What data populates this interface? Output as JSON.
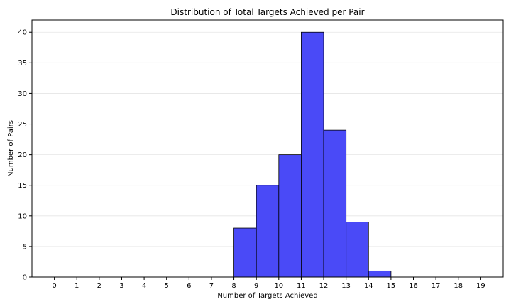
{
  "chart_data": {
    "type": "bar",
    "title": "Distribution of Total Targets Achieved per Pair",
    "xlabel": "Number of Targets Achieved",
    "ylabel": "Number of Pairs",
    "x_ticks": [
      "0",
      "1",
      "2",
      "3",
      "4",
      "5",
      "6",
      "7",
      "8",
      "9",
      "10",
      "11",
      "12",
      "13",
      "14",
      "15",
      "16",
      "17",
      "18",
      "19"
    ],
    "y_ticks": [
      "0",
      "5",
      "10",
      "15",
      "20",
      "25",
      "30",
      "35",
      "40"
    ],
    "xlim": [
      -1,
      20
    ],
    "ylim": [
      0,
      42
    ],
    "grid": "horizontal",
    "bar_color": "#4a4af7",
    "bins": [
      {
        "start": 8,
        "end": 9,
        "count": 8
      },
      {
        "start": 9,
        "end": 10,
        "count": 15
      },
      {
        "start": 10,
        "end": 11,
        "count": 20
      },
      {
        "start": 11,
        "end": 12,
        "count": 40
      },
      {
        "start": 12,
        "end": 13,
        "count": 24
      },
      {
        "start": 13,
        "end": 14,
        "count": 9
      },
      {
        "start": 14,
        "end": 15,
        "count": 1
      }
    ]
  }
}
